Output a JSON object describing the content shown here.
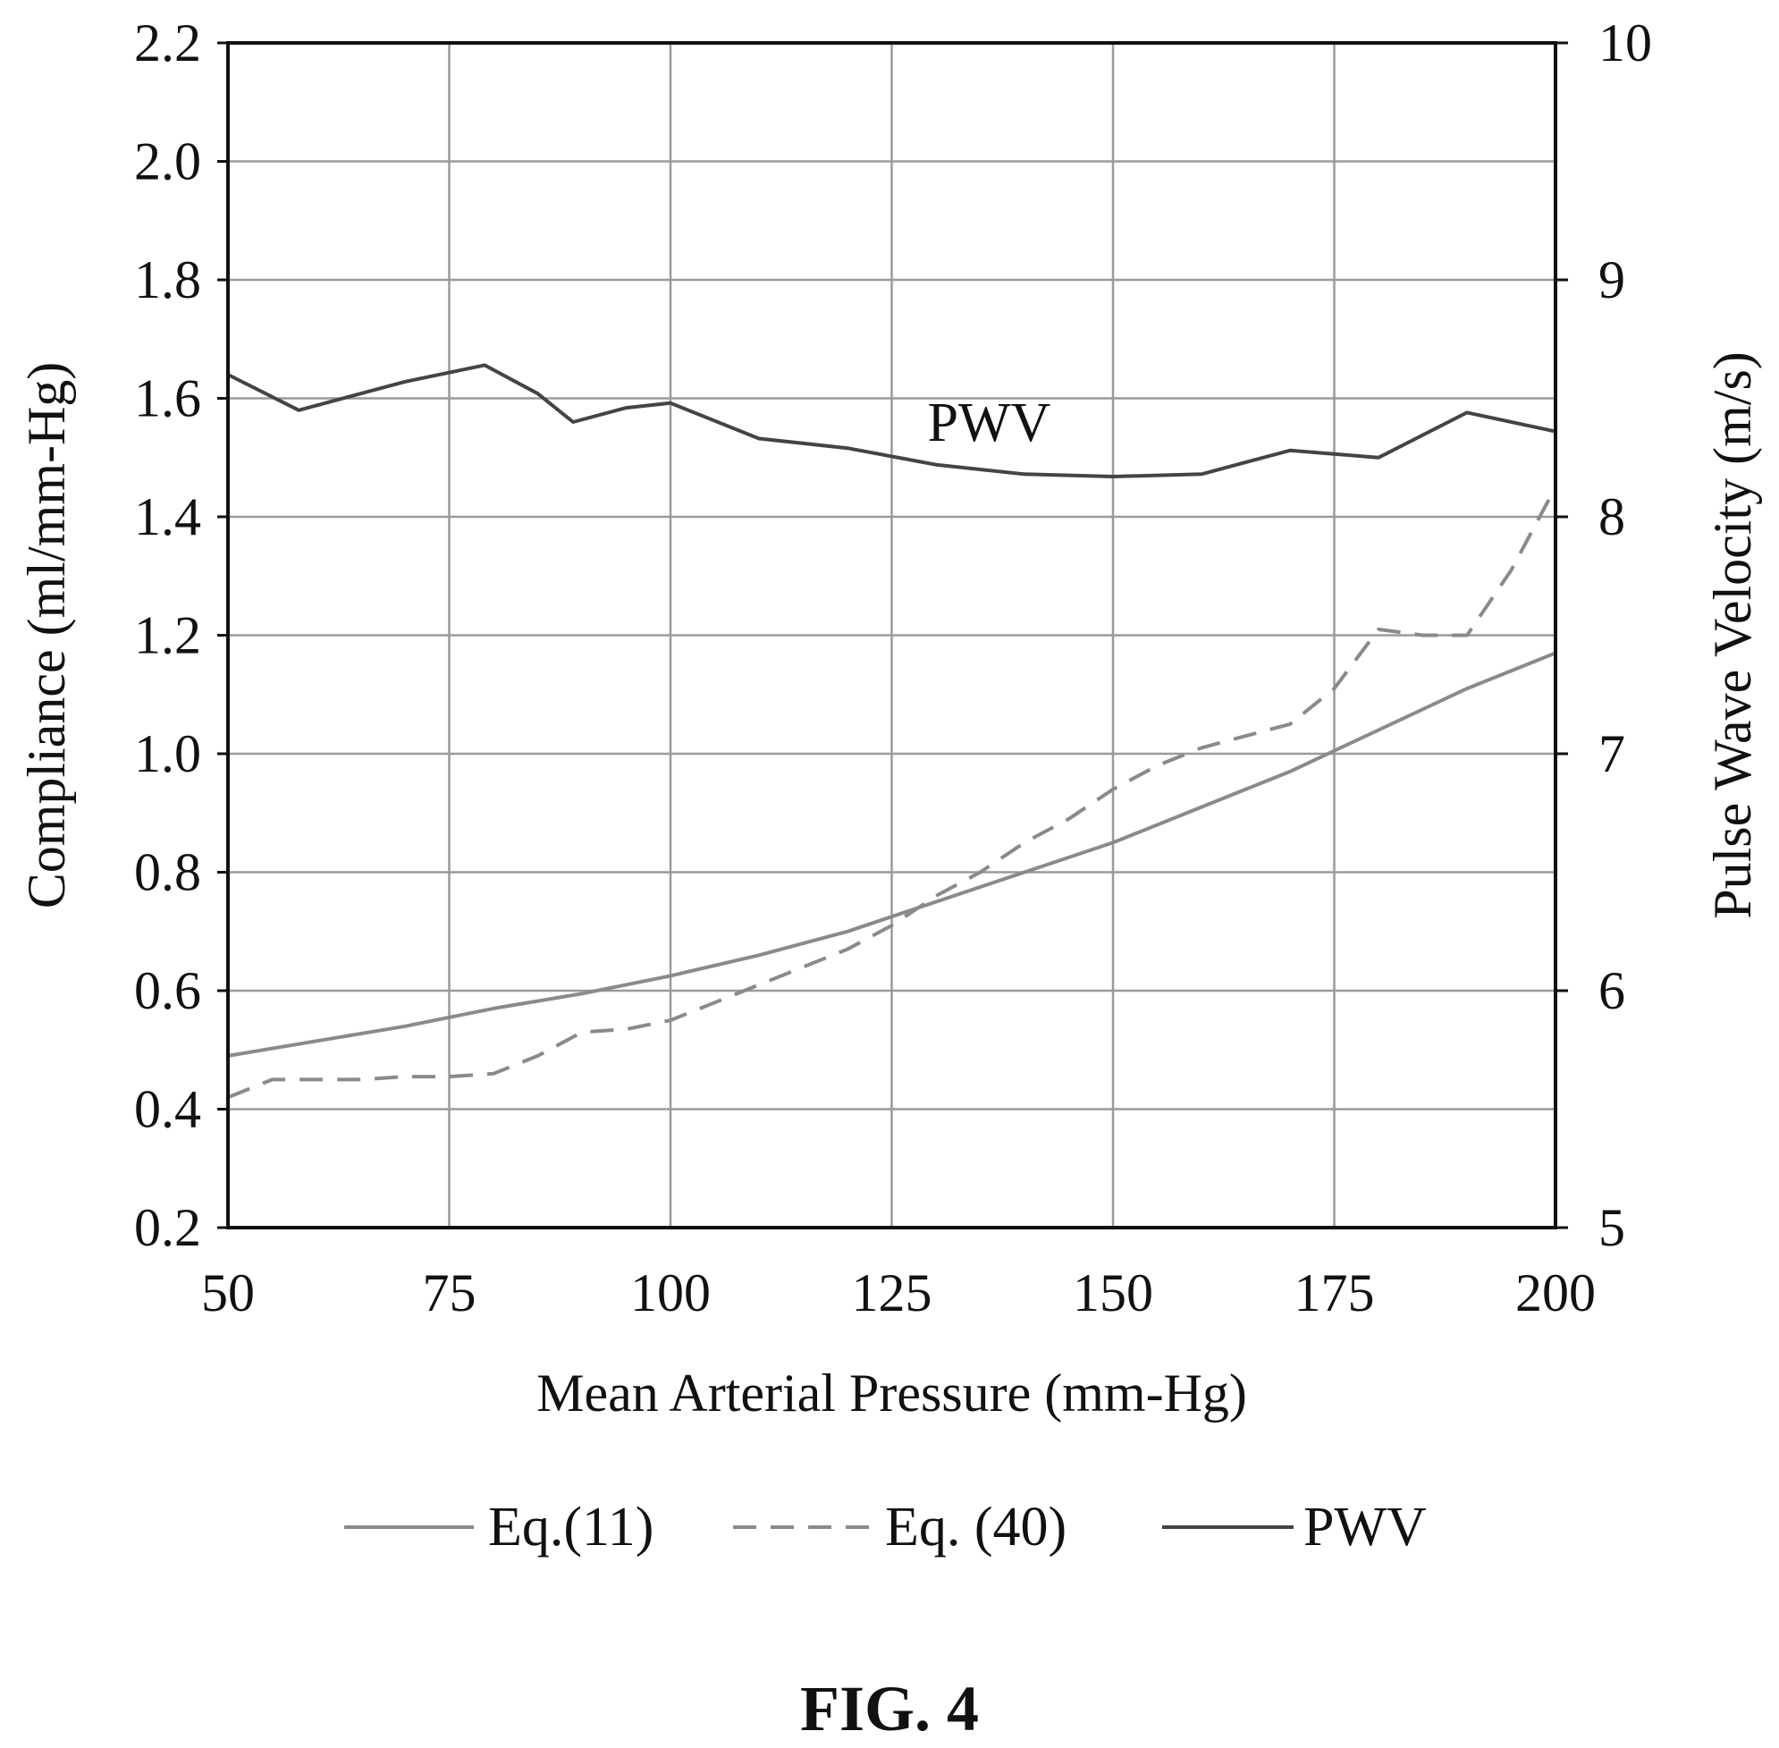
{
  "chart_data": {
    "type": "line",
    "xlabel": "Mean Arterial Pressure (mm-Hg)",
    "ylabel": "Compliance (ml/mm-Hg)",
    "y2label": "Pulse Wave Velocity (m/s)",
    "xlim": [
      50,
      200
    ],
    "ylim": [
      0.2,
      2.2
    ],
    "y2lim": [
      5,
      10
    ],
    "x_ticks": [
      "50",
      "75",
      "100",
      "125",
      "150",
      "175",
      "200"
    ],
    "y_ticks": [
      "0.2",
      "0.4",
      "0.6",
      "0.8",
      "1.0",
      "1.2",
      "1.4",
      "1.6",
      "1.8",
      "2.0",
      "2.2"
    ],
    "y2_ticks": [
      "5",
      "6",
      "7",
      "8",
      "9",
      "10"
    ],
    "grid": true,
    "legend_position": "bottom",
    "series": [
      {
        "name": "Eq.(11)",
        "axis": "left",
        "style": "solid",
        "color": "#8a8a8a",
        "points": [
          [
            50,
            0.49
          ],
          [
            60,
            0.515
          ],
          [
            70,
            0.54
          ],
          [
            80,
            0.57
          ],
          [
            90,
            0.595
          ],
          [
            100,
            0.625
          ],
          [
            110,
            0.66
          ],
          [
            120,
            0.7
          ],
          [
            130,
            0.75
          ],
          [
            140,
            0.8
          ],
          [
            150,
            0.85
          ],
          [
            160,
            0.91
          ],
          [
            170,
            0.97
          ],
          [
            180,
            1.04
          ],
          [
            190,
            1.11
          ],
          [
            200,
            1.17
          ]
        ]
      },
      {
        "name": "Eq. (40)",
        "axis": "left",
        "style": "dashed",
        "color": "#8a8a8a",
        "points": [
          [
            50,
            0.42
          ],
          [
            55,
            0.45
          ],
          [
            60,
            0.45
          ],
          [
            65,
            0.45
          ],
          [
            70,
            0.455
          ],
          [
            75,
            0.455
          ],
          [
            80,
            0.46
          ],
          [
            85,
            0.49
          ],
          [
            90,
            0.53
          ],
          [
            95,
            0.535
          ],
          [
            100,
            0.55
          ],
          [
            105,
            0.58
          ],
          [
            110,
            0.61
          ],
          [
            115,
            0.64
          ],
          [
            120,
            0.67
          ],
          [
            125,
            0.71
          ],
          [
            130,
            0.76
          ],
          [
            135,
            0.8
          ],
          [
            140,
            0.85
          ],
          [
            145,
            0.89
          ],
          [
            150,
            0.94
          ],
          [
            155,
            0.98
          ],
          [
            160,
            1.01
          ],
          [
            165,
            1.03
          ],
          [
            170,
            1.05
          ],
          [
            175,
            1.11
          ],
          [
            180,
            1.21
          ],
          [
            185,
            1.2
          ],
          [
            190,
            1.2
          ],
          [
            195,
            1.31
          ],
          [
            200,
            1.45
          ]
        ]
      },
      {
        "name": "PWV",
        "axis": "right",
        "style": "solid",
        "color": "#444444",
        "points": [
          [
            50,
            8.6
          ],
          [
            58,
            8.45
          ],
          [
            65,
            8.52
          ],
          [
            70,
            8.57
          ],
          [
            79,
            8.64
          ],
          [
            85,
            8.52
          ],
          [
            89,
            8.4
          ],
          [
            95,
            8.46
          ],
          [
            100,
            8.48
          ],
          [
            110,
            8.33
          ],
          [
            120,
            8.29
          ],
          [
            130,
            8.22
          ],
          [
            140,
            8.18
          ],
          [
            150,
            8.17
          ],
          [
            160,
            8.18
          ],
          [
            170,
            8.28
          ],
          [
            180,
            8.25
          ],
          [
            190,
            8.44
          ],
          [
            200,
            8.36
          ]
        ]
      }
    ],
    "annotations": [
      {
        "text": "PWV",
        "x": 136,
        "y2": 8.32
      }
    ],
    "caption": "FIG. 4"
  }
}
